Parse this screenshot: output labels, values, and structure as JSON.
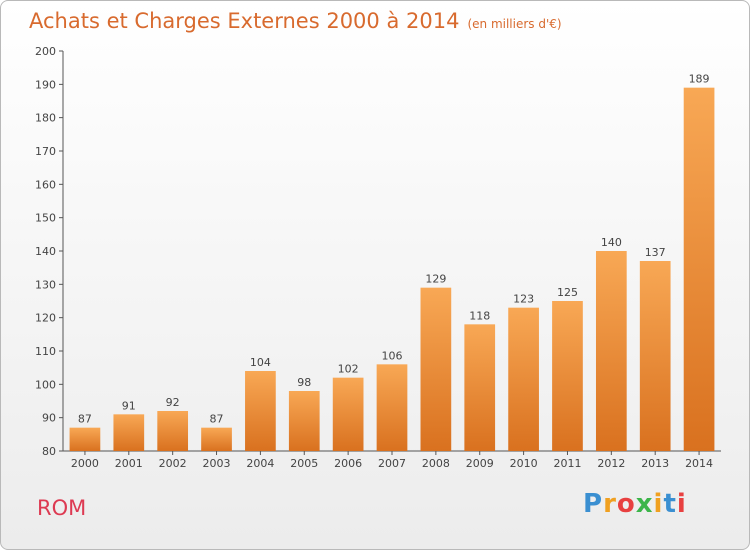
{
  "title": "Achats et Charges Externes 2000 à 2014",
  "subtitle": "(en milliers d'€)",
  "place": "ROM",
  "logo": {
    "letters": [
      "P",
      "r",
      "o",
      "x",
      "i",
      "t",
      "i"
    ],
    "colors": [
      "#3a8fd1",
      "#f0a020",
      "#e84040",
      "#3cb54a",
      "#f0a020",
      "#3a8fd1",
      "#e84040"
    ]
  },
  "colors": {
    "bar_light": "#f8a855",
    "bar_dark": "#d9711f",
    "axis": "#555555",
    "title": "#d86a2e",
    "place": "#dd3a52"
  },
  "chart_data": {
    "type": "bar",
    "title": "Achats et Charges Externes 2000 à 2014",
    "subtitle": "(en milliers d'€)",
    "categories": [
      "2000",
      "2001",
      "2002",
      "2003",
      "2004",
      "2005",
      "2006",
      "2007",
      "2008",
      "2009",
      "2010",
      "2011",
      "2012",
      "2013",
      "2014"
    ],
    "values": [
      87,
      91,
      92,
      87,
      104,
      98,
      102,
      106,
      129,
      118,
      123,
      125,
      140,
      137,
      189
    ],
    "ylim": [
      80,
      200
    ],
    "yticks": [
      80,
      90,
      100,
      110,
      120,
      130,
      140,
      150,
      160,
      170,
      180,
      190,
      200
    ],
    "grid": false,
    "legend": "none"
  }
}
